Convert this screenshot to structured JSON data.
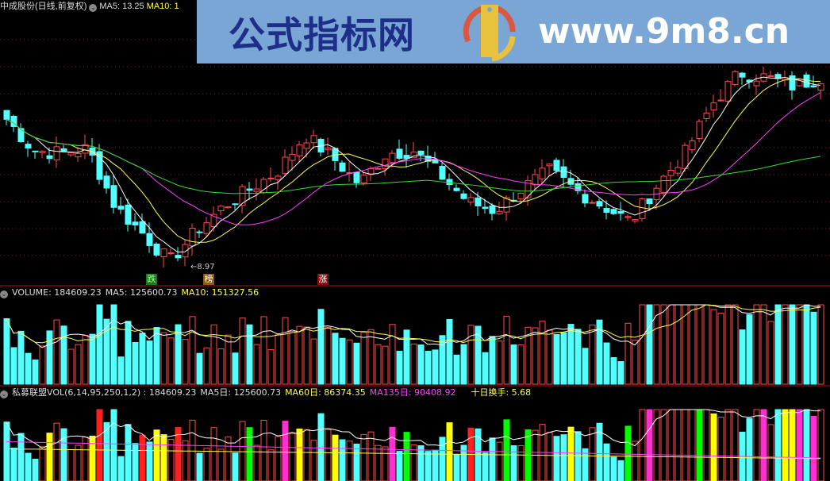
{
  "main_pane": {
    "stock_title": "中成股份(日线,前复权)",
    "ma5_label": "MA5: 13.25",
    "ma10_label": "MA10: 1",
    "low_marker": "8.97",
    "tags": [
      {
        "text": "跌",
        "color": "#1a7a1a"
      },
      {
        "text": "榜",
        "color": "#8a5a10"
      },
      {
        "text": "涨",
        "color": "#8a1010"
      }
    ],
    "price_path": [
      12.36,
      11.65,
      11.6,
      11.7,
      10.4,
      9.8,
      9.15,
      9.86,
      10.4,
      10.8,
      11.2,
      12.0,
      11.5,
      10.9,
      11.6,
      11.65,
      11.1,
      10.5,
      10.3,
      10.8,
      11.2,
      10.75,
      10.4,
      10.05,
      10.9,
      11.6,
      12.7,
      13.4,
      13.3,
      13.1,
      13.3
    ],
    "colors": {
      "up": "#ff4a4a",
      "down": "#54ffff",
      "ma5": "#ffffff",
      "ma10": "#ffff55",
      "ma20": "#ff40ff",
      "ma60": "#33dd33"
    }
  },
  "volume_pane": {
    "volume_label": "VOLUME: 184609.23",
    "ma5_label": "MA5: 125600.73",
    "ma10_label": "MA10: 151327.56"
  },
  "indicator_pane": {
    "name_label": "私募联盟VOL(6,14,95,250,1,2) : 184609.23",
    "ma5_label": "MA5日: 125600.73",
    "ma60_label": "MA60日: 86374.35",
    "ma135_label": "MA135日: 90408.92",
    "turnover_label": "十日换手: 5.68"
  },
  "watermark": {
    "title": "公式指标网",
    "url": "www.9m8.cn"
  }
}
